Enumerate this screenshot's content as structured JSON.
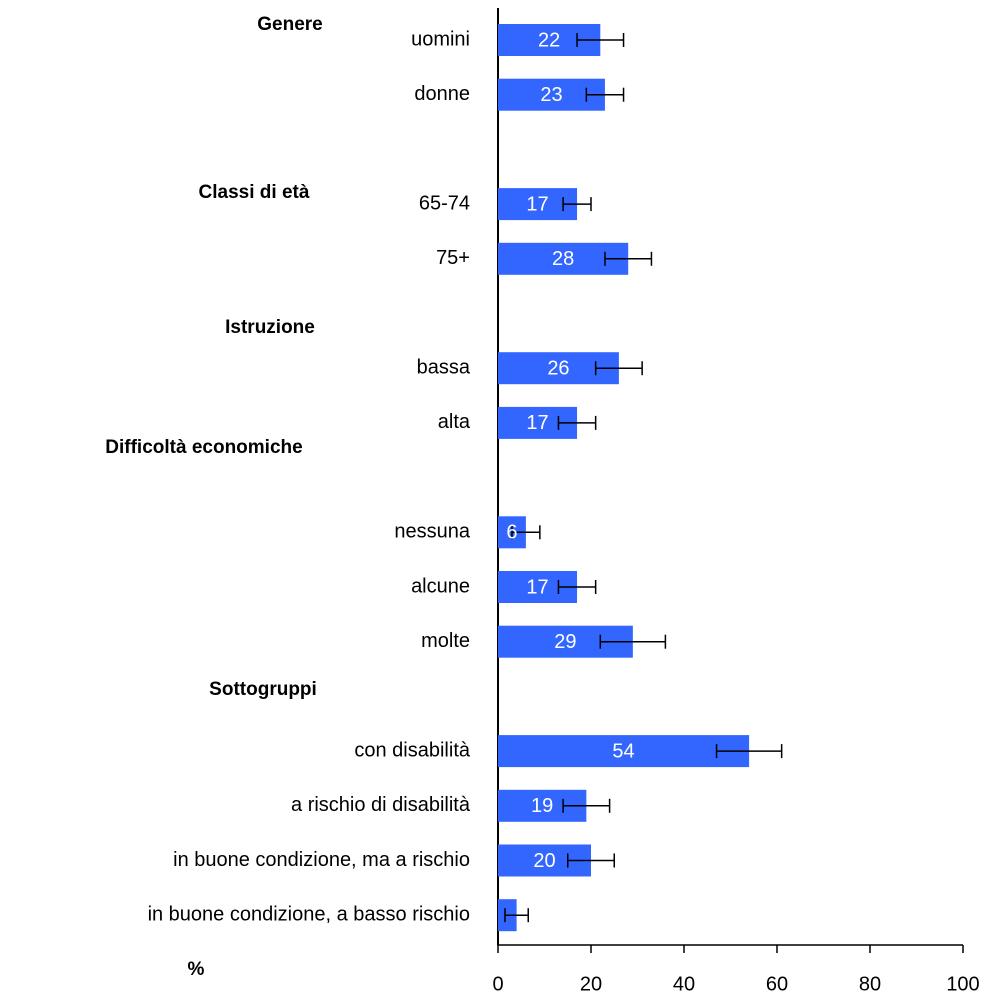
{
  "chart_data": {
    "type": "hbar",
    "annotations": [
      "Genere",
      "Classi di età",
      "Istruzione",
      "Difficoltà economiche",
      "Sottogruppi"
    ],
    "xlabel": "%",
    "categories": [
      "uomini",
      "donne",
      null,
      "65-74",
      "75+",
      null,
      "bassa",
      "alta",
      null,
      "nessuna",
      "alcune",
      "molte",
      null,
      "con disabilità",
      "a rischio di disabilità",
      "in buone condizione, ma a rischio",
      "in buone condizione, a basso rischio"
    ],
    "values": [
      22,
      23,
      null,
      17,
      28,
      null,
      26,
      17,
      null,
      6,
      17,
      29,
      null,
      54,
      19,
      20,
      4
    ],
    "value_labels": [
      "22",
      "23",
      null,
      "17",
      "28",
      null,
      "26",
      "17",
      null,
      "6",
      "17",
      "29",
      null,
      "54",
      "19",
      "20",
      null
    ],
    "errors": [
      5,
      4,
      null,
      3,
      5,
      null,
      5,
      4,
      null,
      3,
      4,
      7,
      null,
      7,
      5,
      5,
      2.5
    ],
    "color": "#3366ff",
    "xlim": [
      0,
      100
    ],
    "xticks": [
      0,
      20,
      40,
      60,
      80,
      100
    ],
    "grid": false
  }
}
